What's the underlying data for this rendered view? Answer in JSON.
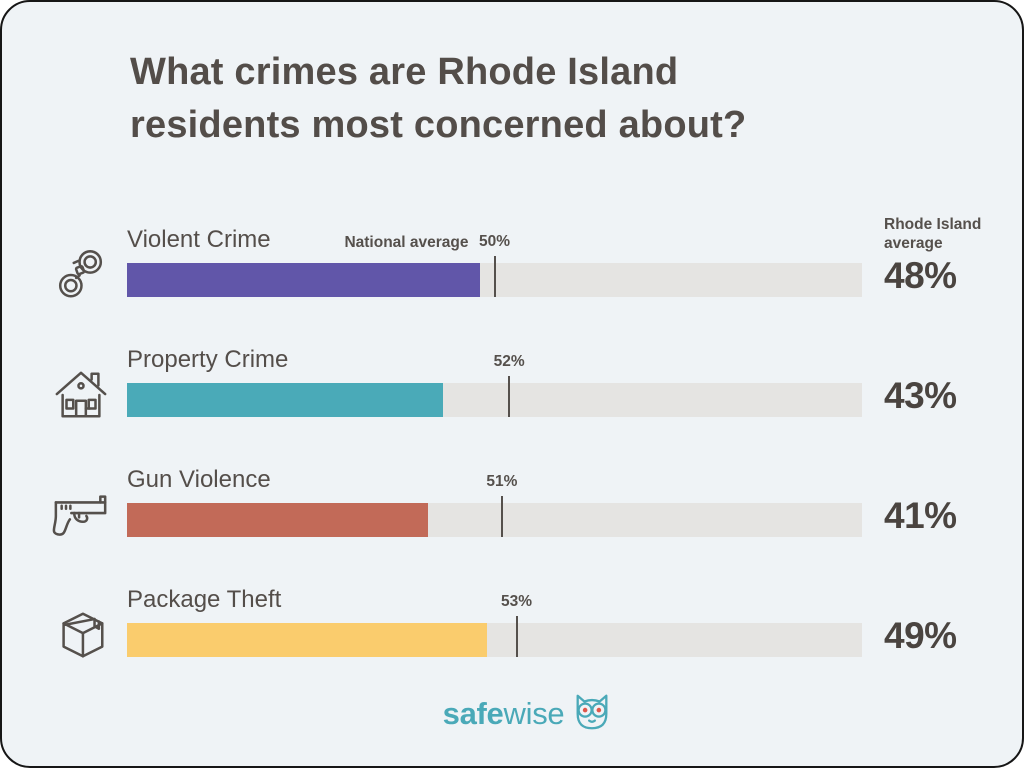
{
  "page": {
    "title_line1": "What crimes are Rhode Island",
    "title_line2": "residents most concerned about?",
    "right_axis_header": "Rhode Island average",
    "national_average_label": "National average"
  },
  "logo": {
    "bold": "safe",
    "light": "wise",
    "color": "#4aa9b8",
    "owl_eye_color": "#df564a"
  },
  "colors": {
    "card_background": "#eff3f6",
    "text_dark": "#534d49",
    "track": "#e5e4e2",
    "tick": "#55504c"
  },
  "chart_data": {
    "type": "bar",
    "orientation": "horizontal",
    "title": "What crimes are Rhode Island residents most concerned about?",
    "categories": [
      "Violent Crime",
      "Property Crime",
      "Gun Violence",
      "Package Theft"
    ],
    "series": [
      {
        "name": "Rhode Island average",
        "values": [
          48,
          43,
          41,
          49
        ]
      },
      {
        "name": "National average",
        "values": [
          50,
          52,
          51,
          53
        ]
      }
    ],
    "value_labels": [
      "48%",
      "43%",
      "41%",
      "49%"
    ],
    "national_labels": [
      "50%",
      "52%",
      "51%",
      "53%"
    ],
    "bar_colors": [
      "#6156a9",
      "#4aaab8",
      "#c26a58",
      "#facc6d"
    ],
    "icons": [
      "handcuffs-icon",
      "house-icon",
      "gun-icon",
      "package-icon"
    ],
    "xlim": [
      0,
      100
    ],
    "grid": false,
    "legend_position": "inline-labels"
  }
}
